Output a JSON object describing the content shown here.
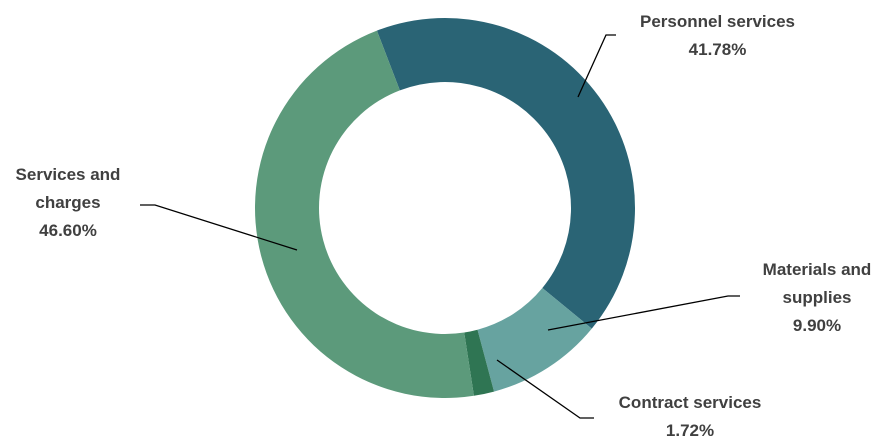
{
  "chart_data": {
    "type": "donut",
    "categories": [
      "Personnel services",
      "Materials and supplies",
      "Contract services",
      "Services and charges"
    ],
    "values": [
      41.78,
      9.9,
      1.72,
      46.6
    ],
    "value_labels": [
      "41.78%",
      "9.90%",
      "1.72%",
      "46.60%"
    ],
    "colors": [
      "#2a6475",
      "#67a3a0",
      "#2f7553",
      "#5c9a7b"
    ]
  }
}
